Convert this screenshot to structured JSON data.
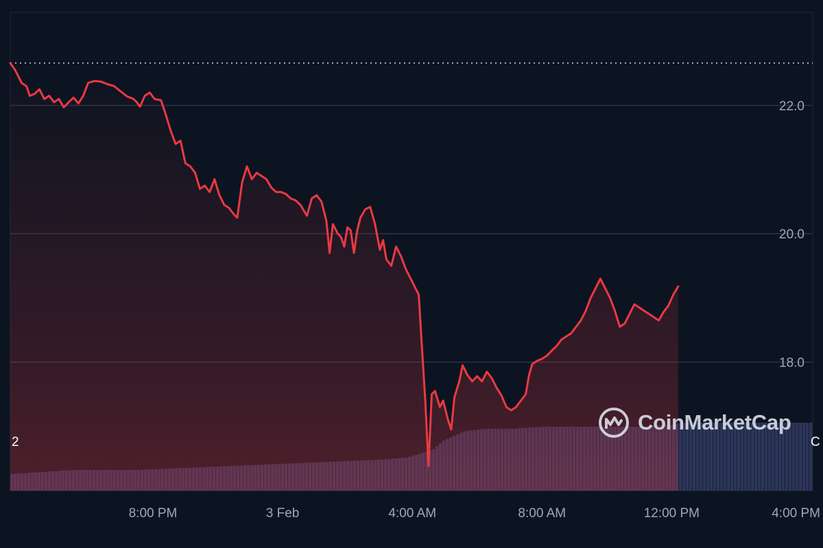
{
  "brand": {
    "watermark_text": "CoinMarketCap",
    "logo_icon": "coinmarketcap-logo-icon"
  },
  "edge_labels": {
    "left": "2",
    "right": "C"
  },
  "colors": {
    "background": "#0d1421",
    "price_line": "#ea3943",
    "grid": "#2b3245",
    "reference_line": "#c9ced8",
    "volume": "#2c3559",
    "axis_text": "#a1a7bb"
  },
  "chart_data": {
    "type": "area",
    "title": "",
    "xlabel": "",
    "ylabel": "",
    "x_range_hours": [
      15.6,
      40.35
    ],
    "x_ticks": [
      {
        "label": "8:00 PM",
        "hour": 20
      },
      {
        "label": "3 Feb",
        "hour": 24
      },
      {
        "label": "4:00 AM",
        "hour": 28
      },
      {
        "label": "8:00 AM",
        "hour": 32
      },
      {
        "label": "12:00 PM",
        "hour": 36
      },
      {
        "label": "4:00 PM",
        "hour": 40
      }
    ],
    "ylim": [
      16.0,
      23.45
    ],
    "y_ticks": [
      {
        "label": "22.0",
        "value": 22.0
      },
      {
        "label": "20.0",
        "value": 20.0
      },
      {
        "label": "18.0",
        "value": 18.0
      },
      {
        "label": "",
        "value": 16.0
      }
    ],
    "reference_price": 22.66,
    "price_series": {
      "name": "",
      "points": [
        [
          15.6,
          22.66
        ],
        [
          15.75,
          22.55
        ],
        [
          15.95,
          22.35
        ],
        [
          16.1,
          22.3
        ],
        [
          16.2,
          22.15
        ],
        [
          16.35,
          22.18
        ],
        [
          16.5,
          22.25
        ],
        [
          16.65,
          22.1
        ],
        [
          16.8,
          22.15
        ],
        [
          16.95,
          22.05
        ],
        [
          17.1,
          22.1
        ],
        [
          17.25,
          21.97
        ],
        [
          17.4,
          22.05
        ],
        [
          17.55,
          22.12
        ],
        [
          17.7,
          22.03
        ],
        [
          17.85,
          22.15
        ],
        [
          18.0,
          22.35
        ],
        [
          18.2,
          22.38
        ],
        [
          18.4,
          22.37
        ],
        [
          18.6,
          22.33
        ],
        [
          18.8,
          22.3
        ],
        [
          19.0,
          22.22
        ],
        [
          19.2,
          22.14
        ],
        [
          19.4,
          22.1
        ],
        [
          19.5,
          22.05
        ],
        [
          19.6,
          21.98
        ],
        [
          19.75,
          22.15
        ],
        [
          19.9,
          22.2
        ],
        [
          20.05,
          22.1
        ],
        [
          20.25,
          22.08
        ],
        [
          20.4,
          21.85
        ],
        [
          20.55,
          21.6
        ],
        [
          20.7,
          21.4
        ],
        [
          20.85,
          21.45
        ],
        [
          21.0,
          21.1
        ],
        [
          21.15,
          21.05
        ],
        [
          21.3,
          20.95
        ],
        [
          21.45,
          20.7
        ],
        [
          21.6,
          20.75
        ],
        [
          21.75,
          20.65
        ],
        [
          21.9,
          20.85
        ],
        [
          22.05,
          20.6
        ],
        [
          22.2,
          20.45
        ],
        [
          22.35,
          20.4
        ],
        [
          22.5,
          20.3
        ],
        [
          22.6,
          20.25
        ],
        [
          22.75,
          20.8
        ],
        [
          22.9,
          21.05
        ],
        [
          23.05,
          20.85
        ],
        [
          23.2,
          20.95
        ],
        [
          23.35,
          20.9
        ],
        [
          23.5,
          20.85
        ],
        [
          23.65,
          20.72
        ],
        [
          23.8,
          20.65
        ],
        [
          23.95,
          20.65
        ],
        [
          24.1,
          20.62
        ],
        [
          24.25,
          20.55
        ],
        [
          24.4,
          20.52
        ],
        [
          24.55,
          20.45
        ],
        [
          24.75,
          20.28
        ],
        [
          24.9,
          20.55
        ],
        [
          25.05,
          20.6
        ],
        [
          25.2,
          20.5
        ],
        [
          25.35,
          20.2
        ],
        [
          25.45,
          19.7
        ],
        [
          25.55,
          20.15
        ],
        [
          25.7,
          20.0
        ],
        [
          25.8,
          19.95
        ],
        [
          25.9,
          19.8
        ],
        [
          26.0,
          20.1
        ],
        [
          26.1,
          20.05
        ],
        [
          26.2,
          19.7
        ],
        [
          26.3,
          20.05
        ],
        [
          26.4,
          20.25
        ],
        [
          26.55,
          20.38
        ],
        [
          26.7,
          20.42
        ],
        [
          26.85,
          20.15
        ],
        [
          27.0,
          19.75
        ],
        [
          27.1,
          19.9
        ],
        [
          27.2,
          19.6
        ],
        [
          27.35,
          19.5
        ],
        [
          27.5,
          19.8
        ],
        [
          27.65,
          19.65
        ],
        [
          27.8,
          19.45
        ],
        [
          27.95,
          19.3
        ],
        [
          28.1,
          19.15
        ],
        [
          28.2,
          19.05
        ],
        [
          28.3,
          18.2
        ],
        [
          28.4,
          17.4
        ],
        [
          28.5,
          16.38
        ],
        [
          28.6,
          17.5
        ],
        [
          28.7,
          17.55
        ],
        [
          28.85,
          17.3
        ],
        [
          28.95,
          17.4
        ],
        [
          29.1,
          17.1
        ],
        [
          29.2,
          16.95
        ],
        [
          29.3,
          17.45
        ],
        [
          29.45,
          17.7
        ],
        [
          29.55,
          17.95
        ],
        [
          29.7,
          17.8
        ],
        [
          29.85,
          17.7
        ],
        [
          30.0,
          17.78
        ],
        [
          30.15,
          17.7
        ],
        [
          30.3,
          17.85
        ],
        [
          30.45,
          17.75
        ],
        [
          30.6,
          17.6
        ],
        [
          30.75,
          17.48
        ],
        [
          30.9,
          17.3
        ],
        [
          31.05,
          17.25
        ],
        [
          31.2,
          17.3
        ],
        [
          31.35,
          17.4
        ],
        [
          31.5,
          17.5
        ],
        [
          31.6,
          17.8
        ],
        [
          31.7,
          17.97
        ],
        [
          31.85,
          18.02
        ],
        [
          32.0,
          18.05
        ],
        [
          32.15,
          18.1
        ],
        [
          32.3,
          18.18
        ],
        [
          32.45,
          18.25
        ],
        [
          32.6,
          18.35
        ],
        [
          32.75,
          18.4
        ],
        [
          32.9,
          18.45
        ],
        [
          33.05,
          18.55
        ],
        [
          33.2,
          18.65
        ],
        [
          33.35,
          18.8
        ],
        [
          33.5,
          19.0
        ],
        [
          33.65,
          19.15
        ],
        [
          33.8,
          19.3
        ],
        [
          33.95,
          19.15
        ],
        [
          34.1,
          19.0
        ],
        [
          34.25,
          18.8
        ],
        [
          34.4,
          18.55
        ],
        [
          34.55,
          18.6
        ],
        [
          34.7,
          18.75
        ],
        [
          34.85,
          18.9
        ],
        [
          35.0,
          18.85
        ],
        [
          35.15,
          18.8
        ],
        [
          35.3,
          18.75
        ],
        [
          35.45,
          18.7
        ],
        [
          35.6,
          18.65
        ],
        [
          35.75,
          18.78
        ],
        [
          35.9,
          18.88
        ],
        [
          36.05,
          19.05
        ],
        [
          36.2,
          19.18
        ]
      ]
    },
    "volume_series": {
      "name": "",
      "points": [
        [
          15.6,
          0.08
        ],
        [
          17.5,
          0.1
        ],
        [
          19.5,
          0.1
        ],
        [
          21.0,
          0.11
        ],
        [
          22.5,
          0.12
        ],
        [
          24.0,
          0.13
        ],
        [
          25.5,
          0.14
        ],
        [
          27.0,
          0.15
        ],
        [
          27.8,
          0.16
        ],
        [
          28.6,
          0.2
        ],
        [
          28.9,
          0.24
        ],
        [
          29.3,
          0.27
        ],
        [
          29.6,
          0.29
        ],
        [
          30.2,
          0.3
        ],
        [
          31.0,
          0.3
        ],
        [
          32.0,
          0.31
        ],
        [
          34.0,
          0.31
        ],
        [
          35.0,
          0.31
        ],
        [
          36.0,
          0.32
        ],
        [
          36.35,
          0.33
        ]
      ]
    }
  }
}
